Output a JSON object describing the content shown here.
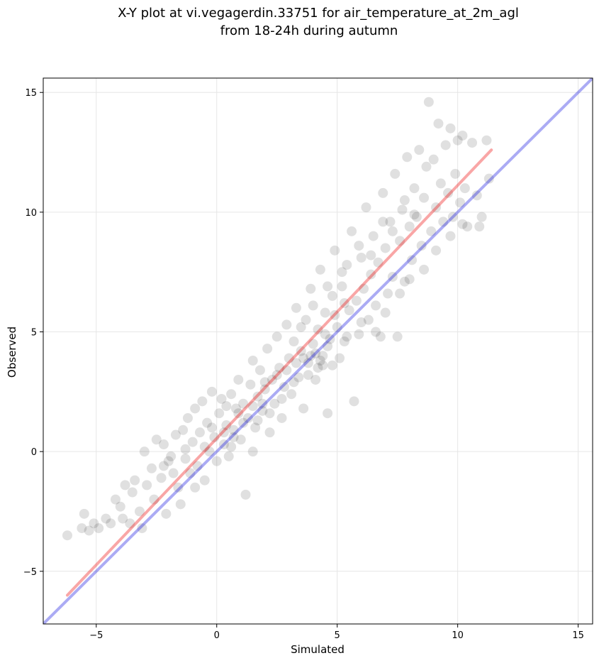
{
  "chart_data": {
    "type": "scatter",
    "title_line1": "X-Y plot at vi.vegagerdin.33751 for air_temperature_at_2m_agl",
    "title_line2": "from 18-24h during autumn",
    "xlabel": "Simulated",
    "ylabel": "Observed",
    "xlim": [
      -7.2,
      15.6
    ],
    "ylim": [
      -7.2,
      15.6
    ],
    "xticks": [
      -5,
      0,
      5,
      10,
      15
    ],
    "yticks": [
      -5,
      0,
      5,
      10,
      15
    ],
    "tick_labels": [
      "−5",
      "0",
      "5",
      "10",
      "15"
    ],
    "grid": true,
    "point_color": "#000000",
    "point_opacity": 0.12,
    "identity_line": {
      "color": "#0000dd",
      "x": [
        -7.2,
        15.6
      ],
      "y": [
        -7.2,
        15.6
      ]
    },
    "regression_line": {
      "color": "#ee0000",
      "x": [
        -6.2,
        11.4
      ],
      "y": [
        -6.0,
        12.6
      ]
    },
    "points": [
      [
        -6.2,
        -3.5
      ],
      [
        -5.6,
        -3.2
      ],
      [
        -5.5,
        -2.6
      ],
      [
        -5.3,
        -3.3
      ],
      [
        -5.1,
        -3.0
      ],
      [
        -4.9,
        -3.2
      ],
      [
        -4.6,
        -2.8
      ],
      [
        -4.4,
        -3.0
      ],
      [
        -4.2,
        -2.0
      ],
      [
        -4.0,
        -2.3
      ],
      [
        -3.9,
        -2.8
      ],
      [
        -3.8,
        -1.4
      ],
      [
        -3.6,
        -3.0
      ],
      [
        -3.5,
        -1.7
      ],
      [
        -3.4,
        -1.2
      ],
      [
        -3.2,
        -2.5
      ],
      [
        -3.1,
        -3.2
      ],
      [
        -3.0,
        0.0
      ],
      [
        -2.9,
        -1.4
      ],
      [
        -2.7,
        -0.7
      ],
      [
        -2.6,
        -2.0
      ],
      [
        -2.5,
        0.5
      ],
      [
        -2.3,
        -1.1
      ],
      [
        -2.2,
        0.3
      ],
      [
        -2.1,
        -2.6
      ],
      [
        -2.0,
        -0.4
      ],
      [
        -1.8,
        -0.9
      ],
      [
        -1.7,
        0.7
      ],
      [
        -1.6,
        -1.5
      ],
      [
        -1.5,
        -2.2
      ],
      [
        -1.4,
        0.9
      ],
      [
        -1.3,
        -0.3
      ],
      [
        -1.2,
        1.4
      ],
      [
        -1.1,
        -0.9
      ],
      [
        -1.0,
        0.4
      ],
      [
        -0.9,
        1.8
      ],
      [
        -0.8,
        -0.6
      ],
      [
        -0.7,
        0.8
      ],
      [
        -0.6,
        2.1
      ],
      [
        -0.5,
        -1.2
      ],
      [
        -0.4,
        1.2
      ],
      [
        -0.3,
        0.0
      ],
      [
        -0.2,
        2.5
      ],
      [
        -0.1,
        0.6
      ],
      [
        0.0,
        -0.4
      ],
      [
        0.1,
        1.6
      ],
      [
        0.2,
        2.2
      ],
      [
        0.3,
        0.3
      ],
      [
        0.4,
        1.1
      ],
      [
        0.5,
        -0.2
      ],
      [
        0.6,
        2.4
      ],
      [
        0.7,
        0.9
      ],
      [
        0.8,
        1.8
      ],
      [
        0.9,
        3.0
      ],
      [
        1.0,
        0.5
      ],
      [
        1.1,
        2.0
      ],
      [
        1.2,
        -1.8
      ],
      [
        1.3,
        1.4
      ],
      [
        1.4,
        2.8
      ],
      [
        1.5,
        3.8
      ],
      [
        1.6,
        1.0
      ],
      [
        1.7,
        2.3
      ],
      [
        1.8,
        3.4
      ],
      [
        1.9,
        1.7
      ],
      [
        2.0,
        2.6
      ],
      [
        2.1,
        4.3
      ],
      [
        2.2,
        0.8
      ],
      [
        2.3,
        3.0
      ],
      [
        2.4,
        2.0
      ],
      [
        2.5,
        4.8
      ],
      [
        2.6,
        3.5
      ],
      [
        2.7,
        1.4
      ],
      [
        2.8,
        2.7
      ],
      [
        2.9,
        5.3
      ],
      [
        3.0,
        3.9
      ],
      [
        3.1,
        2.4
      ],
      [
        3.2,
        4.6
      ],
      [
        3.3,
        6.0
      ],
      [
        3.4,
        3.1
      ],
      [
        3.5,
        4.2
      ],
      [
        3.6,
        1.8
      ],
      [
        3.7,
        5.5
      ],
      [
        3.8,
        3.7
      ],
      [
        3.9,
        6.8
      ],
      [
        4.0,
        4.5
      ],
      [
        4.1,
        3.0
      ],
      [
        4.2,
        5.1
      ],
      [
        4.3,
        7.6
      ],
      [
        4.4,
        4.0
      ],
      [
        4.5,
        5.8
      ],
      [
        4.6,
        1.6
      ],
      [
        4.7,
        4.7
      ],
      [
        4.8,
        6.5
      ],
      [
        4.9,
        8.4
      ],
      [
        5.0,
        5.2
      ],
      [
        5.1,
        3.9
      ],
      [
        5.2,
        6.9
      ],
      [
        5.3,
        4.6
      ],
      [
        5.4,
        7.8
      ],
      [
        5.5,
        5.9
      ],
      [
        5.6,
        9.2
      ],
      [
        5.7,
        2.1
      ],
      [
        5.8,
        6.3
      ],
      [
        5.9,
        4.9
      ],
      [
        6.0,
        8.1
      ],
      [
        6.1,
        6.8
      ],
      [
        6.2,
        10.2
      ],
      [
        6.3,
        5.5
      ],
      [
        6.4,
        7.4
      ],
      [
        6.5,
        9.0
      ],
      [
        6.6,
        6.1
      ],
      [
        6.7,
        7.9
      ],
      [
        6.8,
        4.8
      ],
      [
        6.9,
        10.8
      ],
      [
        7.0,
        8.5
      ],
      [
        7.1,
        6.6
      ],
      [
        7.2,
        9.6
      ],
      [
        7.3,
        7.3
      ],
      [
        7.4,
        11.6
      ],
      [
        7.5,
        4.8
      ],
      [
        7.6,
        8.8
      ],
      [
        7.7,
        10.1
      ],
      [
        7.8,
        7.1
      ],
      [
        7.9,
        12.3
      ],
      [
        8.0,
        9.4
      ],
      [
        8.1,
        8.0
      ],
      [
        8.2,
        11.0
      ],
      [
        8.3,
        9.8
      ],
      [
        8.4,
        12.6
      ],
      [
        8.5,
        8.6
      ],
      [
        8.6,
        10.6
      ],
      [
        8.7,
        11.9
      ],
      [
        8.8,
        14.6
      ],
      [
        8.9,
        9.2
      ],
      [
        9.0,
        12.2
      ],
      [
        9.1,
        10.2
      ],
      [
        9.2,
        13.7
      ],
      [
        9.3,
        11.2
      ],
      [
        9.4,
        9.6
      ],
      [
        9.5,
        12.8
      ],
      [
        9.6,
        10.8
      ],
      [
        9.7,
        13.5
      ],
      [
        9.8,
        9.8
      ],
      [
        9.9,
        11.6
      ],
      [
        10.0,
        13.0
      ],
      [
        10.1,
        10.4
      ],
      [
        10.2,
        13.2
      ],
      [
        10.3,
        11.0
      ],
      [
        10.4,
        9.4
      ],
      [
        10.6,
        12.9
      ],
      [
        10.8,
        10.7
      ],
      [
        11.0,
        9.8
      ],
      [
        11.2,
        13.0
      ],
      [
        11.3,
        11.4
      ],
      [
        10.9,
        9.4
      ],
      [
        -1.9,
        -0.2
      ],
      [
        -0.9,
        -1.5
      ],
      [
        0.6,
        0.2
      ],
      [
        1.5,
        0.0
      ],
      [
        2.2,
        1.6
      ],
      [
        2.5,
        3.2
      ],
      [
        2.9,
        3.4
      ],
      [
        3.3,
        3.7
      ],
      [
        3.6,
        3.9
      ],
      [
        3.9,
        4.0
      ],
      [
        4.1,
        4.1
      ],
      [
        4.3,
        3.8
      ],
      [
        4.4,
        3.6
      ],
      [
        4.6,
        4.4
      ],
      [
        4.8,
        3.6
      ],
      [
        3.2,
        2.9
      ],
      [
        2.7,
        2.2
      ],
      [
        1.9,
        2.0
      ],
      [
        1.5,
        1.9
      ],
      [
        1.1,
        1.2
      ],
      [
        0.7,
        0.6
      ],
      [
        0.3,
        0.8
      ],
      [
        -0.5,
        0.2
      ],
      [
        -1.3,
        0.1
      ],
      [
        -2.2,
        -0.6
      ],
      [
        3.5,
        5.2
      ],
      [
        4.0,
        6.1
      ],
      [
        4.6,
        6.9
      ],
      [
        5.2,
        7.5
      ],
      [
        5.9,
        8.6
      ],
      [
        6.4,
        8.2
      ],
      [
        6.9,
        9.6
      ],
      [
        7.3,
        9.2
      ],
      [
        7.8,
        10.5
      ],
      [
        8.2,
        9.9
      ],
      [
        5.4,
        4.8
      ],
      [
        6.0,
        5.4
      ],
      [
        6.6,
        5.0
      ],
      [
        7.0,
        5.8
      ],
      [
        7.6,
        6.6
      ],
      [
        8.0,
        7.2
      ],
      [
        8.6,
        7.6
      ],
      [
        9.1,
        8.4
      ],
      [
        9.7,
        9.0
      ],
      [
        10.2,
        9.5
      ],
      [
        3.8,
        3.2
      ],
      [
        4.2,
        3.5
      ],
      [
        4.5,
        4.9
      ],
      [
        4.9,
        5.7
      ],
      [
        5.3,
        6.2
      ],
      [
        2.0,
        2.9
      ],
      [
        1.7,
        1.3
      ],
      [
        0.9,
        1.6
      ],
      [
        0.4,
        1.9
      ],
      [
        -0.2,
        1.0
      ]
    ]
  }
}
